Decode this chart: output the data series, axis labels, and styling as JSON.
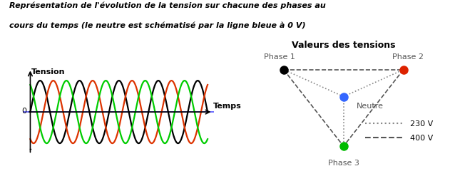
{
  "title_line1": "Représentation de l'évolution de la tension sur chacune des phases au",
  "title_line2": "cours du temps (le neutre est schématisé par la ligne bleue à 0 V)",
  "left_ylabel": "Tension",
  "left_xlabel": "Temps",
  "bg_color": "#ffffff",
  "sine_colors": [
    "black",
    "#dd3300",
    "#00cc00"
  ],
  "neutral_color": "#4444ff",
  "right_title": "Valeurs des tensions",
  "legend_230": "230 V",
  "legend_400": "400 V",
  "num_cycles": 4.5
}
